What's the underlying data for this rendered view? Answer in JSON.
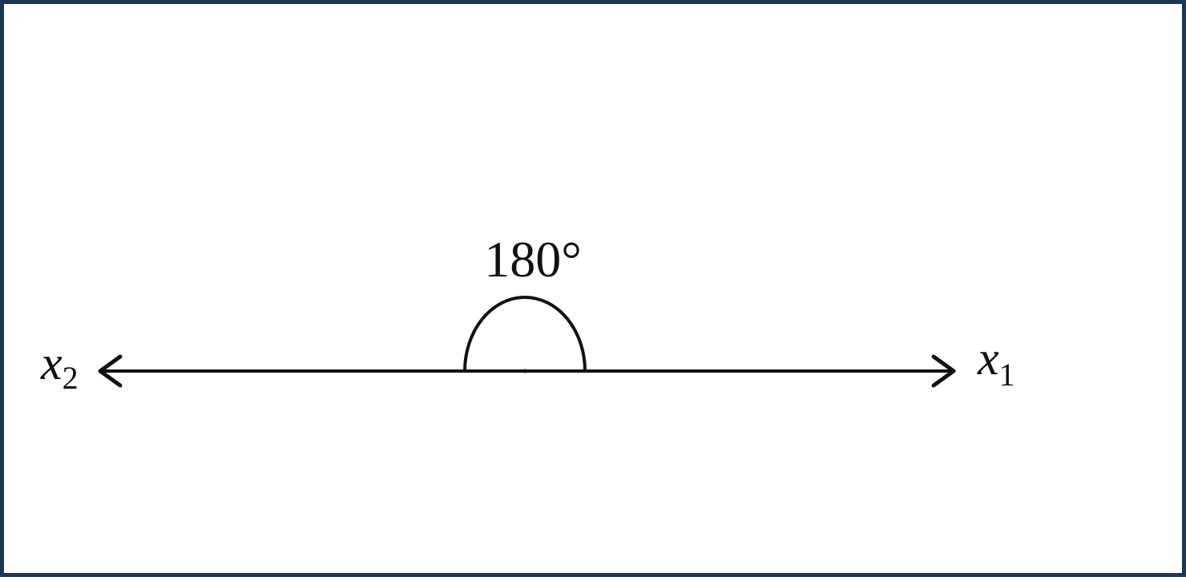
{
  "diagram": {
    "angle_label": "180°",
    "ray_left": {
      "symbol": "x",
      "subscript": "2"
    },
    "ray_right": {
      "symbol": "x",
      "subscript": "1"
    },
    "colors": {
      "frame": "#1d3557",
      "stroke": "#111111",
      "background": "#ffffff"
    }
  }
}
